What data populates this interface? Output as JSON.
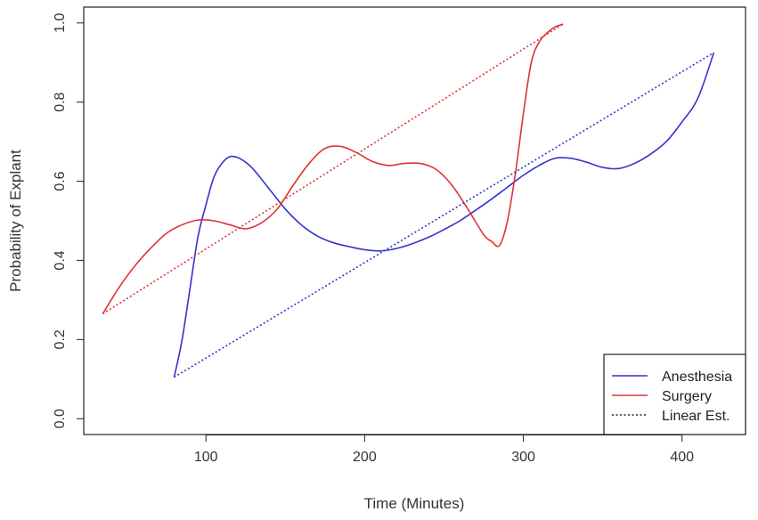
{
  "chart_data": {
    "type": "line",
    "title": "",
    "xlabel": "Time (Minutes)",
    "ylabel": "Probability of Explant",
    "xlim": [
      23,
      440
    ],
    "ylim": [
      -0.04,
      1.04
    ],
    "x_ticks": [
      100,
      200,
      300,
      400
    ],
    "x_tick_labels": [
      "100",
      "200",
      "300",
      "400"
    ],
    "y_ticks": [
      0.0,
      0.2,
      0.4,
      0.6,
      0.8,
      1.0
    ],
    "y_tick_labels": [
      "0.0",
      "0.2",
      "0.4",
      "0.6",
      "0.8",
      "1.0"
    ],
    "grid": false,
    "legend_position": "bottom-right",
    "legend": [
      {
        "label": "Anesthesia",
        "color": "#3333cc",
        "style": "solid"
      },
      {
        "label": "Surgery",
        "color": "#dd3333",
        "style": "solid"
      },
      {
        "label": "Linear Est.",
        "color": "#222222",
        "style": "dotted"
      }
    ],
    "series": [
      {
        "name": "Anesthesia",
        "color": "#3333cc",
        "style": "solid",
        "x": [
          80,
          85,
          90,
          95,
          100,
          105,
          110,
          115,
          120,
          125,
          130,
          140,
          150,
          160,
          170,
          180,
          190,
          200,
          210,
          220,
          230,
          240,
          250,
          260,
          270,
          280,
          290,
          300,
          310,
          320,
          330,
          340,
          350,
          360,
          370,
          380,
          390,
          400,
          410,
          420
        ],
        "y": [
          0.105,
          0.2,
          0.33,
          0.46,
          0.54,
          0.61,
          0.645,
          0.662,
          0.66,
          0.648,
          0.63,
          0.58,
          0.53,
          0.49,
          0.462,
          0.445,
          0.435,
          0.427,
          0.424,
          0.43,
          0.442,
          0.458,
          0.478,
          0.5,
          0.527,
          0.555,
          0.585,
          0.615,
          0.64,
          0.658,
          0.658,
          0.648,
          0.635,
          0.632,
          0.645,
          0.668,
          0.7,
          0.75,
          0.81,
          0.925
        ]
      },
      {
        "name": "Surgery",
        "color": "#dd3333",
        "style": "solid",
        "x": [
          35,
          45,
          55,
          65,
          75,
          85,
          95,
          105,
          115,
          125,
          135,
          145,
          155,
          165,
          175,
          185,
          195,
          205,
          215,
          225,
          235,
          245,
          255,
          265,
          275,
          280,
          285,
          290,
          295,
          300,
          305,
          310,
          315,
          320,
          325
        ],
        "y": [
          0.265,
          0.33,
          0.385,
          0.43,
          0.468,
          0.49,
          0.502,
          0.5,
          0.49,
          0.48,
          0.495,
          0.53,
          0.59,
          0.645,
          0.683,
          0.688,
          0.672,
          0.65,
          0.64,
          0.645,
          0.645,
          0.63,
          0.59,
          0.53,
          0.465,
          0.448,
          0.438,
          0.5,
          0.62,
          0.77,
          0.9,
          0.952,
          0.975,
          0.99,
          0.997
        ]
      },
      {
        "name": "Anesthesia Linear Est.",
        "color": "#3333cc",
        "style": "dotted",
        "x": [
          80,
          420
        ],
        "y": [
          0.105,
          0.925
        ]
      },
      {
        "name": "Surgery Linear Est.",
        "color": "#dd3333",
        "style": "dotted",
        "x": [
          35,
          325
        ],
        "y": [
          0.265,
          0.997
        ]
      }
    ]
  }
}
